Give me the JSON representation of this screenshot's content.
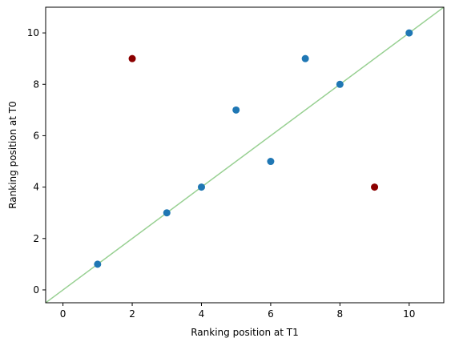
{
  "chart_data": {
    "type": "scatter",
    "title": "",
    "xlabel": "Ranking position at T1",
    "ylabel": "Ranking position at T0",
    "xlim": [
      -0.5,
      11
    ],
    "ylim": [
      -0.5,
      11
    ],
    "xticks": [
      0,
      2,
      4,
      6,
      8,
      10
    ],
    "yticks": [
      0,
      2,
      4,
      6,
      8,
      10
    ],
    "grid": false,
    "points": [
      {
        "x": 1,
        "y": 1,
        "color": "#1f77b4"
      },
      {
        "x": 2,
        "y": 9,
        "color": "#8b0000"
      },
      {
        "x": 3,
        "y": 3,
        "color": "#1f77b4"
      },
      {
        "x": 4,
        "y": 4,
        "color": "#1f77b4"
      },
      {
        "x": 5,
        "y": 7,
        "color": "#1f77b4"
      },
      {
        "x": 6,
        "y": 5,
        "color": "#1f77b4"
      },
      {
        "x": 7,
        "y": 9,
        "color": "#1f77b4"
      },
      {
        "x": 8,
        "y": 8,
        "color": "#1f77b4"
      },
      {
        "x": 9,
        "y": 4,
        "color": "#8b0000"
      },
      {
        "x": 10,
        "y": 10,
        "color": "#1f77b4"
      }
    ],
    "reference_line": {
      "from": [
        -0.5,
        -0.5
      ],
      "to": [
        11,
        11
      ],
      "color": "#98d092"
    }
  }
}
